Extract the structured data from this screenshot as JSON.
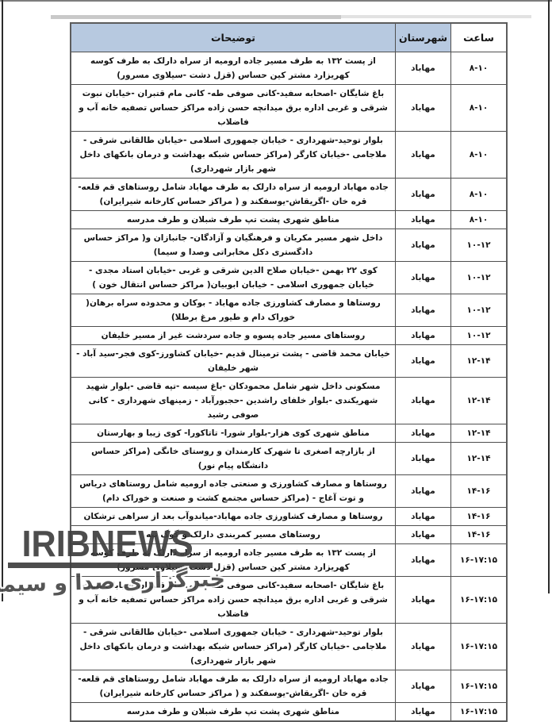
{
  "table": {
    "headers": {
      "hour": "ساعت",
      "county": "شهرستان",
      "details": "توضیحات"
    },
    "rows": [
      {
        "time": "۸-۱۰",
        "county": "مهاباد",
        "details": "از پست ۱۳۲ به طرف مسیر جاده ارومیه از سراه دارلک به طرف کوسه کهریزارد مشتر کین حساس (قزل دشت -سیلاوی مسرور)"
      },
      {
        "time": "۸-۱۰",
        "county": "مهاباد",
        "details": "باغ شایگان -اصحابه سفید-کانی صوفی طه- کانی مام قتبران -خیابان نبوت شرقی و غربی اداره برق میدانچه حسن زاده مراکز حساس تصفیه خانه آب و فاضلاب"
      },
      {
        "time": "۸-۱۰",
        "county": "مهاباد",
        "details": "بلوار توحید-شهرداری - خیابان جمهوری اسلامی -خیابان طالقانی شرقی - ملاجامی -خیابان کارگر (مراکز حساس شبکه بهداشت و درمان بانکهای داخل شهر بازار شهرداری)"
      },
      {
        "time": "۸-۱۰",
        "county": "مهاباد",
        "details": "جاده مهاباد ارومیه از سراه دارلک به طرف مهاباد شامل روستاهای قم قلعه-قره خان -اگریقاش-یوسفکند و ( مراکز حساس کارخانه شیرایران)"
      },
      {
        "time": "۸-۱۰",
        "county": "مهاباد",
        "details": "مناطق شهری پشت تپ طرف شبلان و طرف مدرسه"
      },
      {
        "time": "۱۰-۱۲",
        "county": "مهاباد",
        "details": "داخل شهر مسیر مکریان و فرهنگیان و آزادگان- جانبازان و( مراکز حساس دادگستری دکل مخابراتی وصدا و سیما)"
      },
      {
        "time": "۱۰-۱۲",
        "county": "مهاباد",
        "details": "کوی ۲۲ بهمن -خیابان صلاح الدین شرقی و غربی -خیابان استاد مجدی - خیابان جمهوری اسلامی - خیابان ابوبیان( مراکز حساس انتقال خون )"
      },
      {
        "time": "۱۰-۱۲",
        "county": "مهاباد",
        "details": "روستاها و مصارف کشاورزی جاده مهاباد - بوکان و محدوده سراه برهان( خوراک دام و طیور مرغ برطلا)"
      },
      {
        "time": "۱۰-۱۲",
        "county": "مهاباد",
        "details": "روستاهای مسیر جاده پسوه و جاده سردشت غیر از مسیر خلیفان"
      },
      {
        "time": "۱۲-۱۴",
        "county": "مهاباد",
        "details": "خیابان محمد قاضی - پشت ترمینال قدیم -خیابان کشاورز-کوی فجر-سید آباد - شهر خلیفان"
      },
      {
        "time": "۱۲-۱۴",
        "county": "مهاباد",
        "details": "مسکونی داخل شهر شامل محمودکان -باغ سیسه -تپه قاضی -بلوار شهید شهریکندی -بلوار خلفای راشدین -حجبورآباد - زمینهای شهرداری - کانی صوفی رشید"
      },
      {
        "time": "۱۲-۱۴",
        "county": "مهاباد",
        "details": "مناطق شهری کوی هزار-بلوار شورا- تاتاکورا- کوی زیبا و بهارستان"
      },
      {
        "time": "۱۲-۱۴",
        "county": "مهاباد",
        "details": "از بازارچه اصغری تا شهرک کارمندان و روستای خانگی (مراکز حساس دانشگاه پیام نور)"
      },
      {
        "time": "۱۴-۱۶",
        "county": "مهاباد",
        "details": "روستاها و مصارف کشاورزی و صنعتی جاده ارومیه شامل روستاهای دریاس و توت آغاج - (مراکز حساس مجتمع کشت و صنعت و خوراک دام)"
      },
      {
        "time": "۱۴-۱۶",
        "county": "مهاباد",
        "details": "روستاها و مصارف کشاورزی جاده مهاباد-میاندوآب بعد از سراهی ترشکان"
      },
      {
        "time": "۱۴-۱۶",
        "county": "مهاباد",
        "details": "روستاهای مسیر کمربندی دارلک و گوگ تپه"
      },
      {
        "time": "۱۶-۱۷:۱۵",
        "county": "مهاباد",
        "details": "از پست ۱۳۲ به طرف مسیر جاده ارومیه از سراه دارلک به طرف کوسه کهریزارد مشتر کین حساس (قزل دشت -سیلاوی مسرور)"
      },
      {
        "time": "۱۶-۱۷:۱۵",
        "county": "مهاباد",
        "details": "باغ شایگان -اصحابه سفید-کانی صوفی طه- کانی مام قتبران -خیابان نبوت شرقی و غربی اداره برق میدانچه حسن زاده مراکز حساس تصفیه خانه آب و فاضلاب"
      },
      {
        "time": "۱۶-۱۷:۱۵",
        "county": "مهاباد",
        "details": "بلوار توحید-شهرداری - خیابان جمهوری اسلامی -خیابان طالقانی شرقی - ملاجامی -خیابان کارگر (مراکز حساس شبکه بهداشت و درمان بانکهای داخل شهر بازار شهرداری)"
      },
      {
        "time": "۱۶-۱۷:۱۵",
        "county": "مهاباد",
        "details": "جاده مهاباد ارومیه از سراه دارلک به طرف مهاباد شامل روستاهای قم قلعه-قره خان -اگریقاش-یوسفکند و ( مراکز حساس کارخانه شیرایران)"
      },
      {
        "time": "۱۶-۱۷:۱۵",
        "county": "مهاباد",
        "details": "مناطق شهری پشت تپ طرف شبلان و طرف مدرسه"
      }
    ]
  },
  "watermark": {
    "title": "IRIBNEWS",
    "subtitle": "خبرگزاری صدا و سیما"
  },
  "colors": {
    "header_bg": "#b7c9e0",
    "border": "#4f4f4f",
    "watermark_gray": "#3e3e3e"
  }
}
